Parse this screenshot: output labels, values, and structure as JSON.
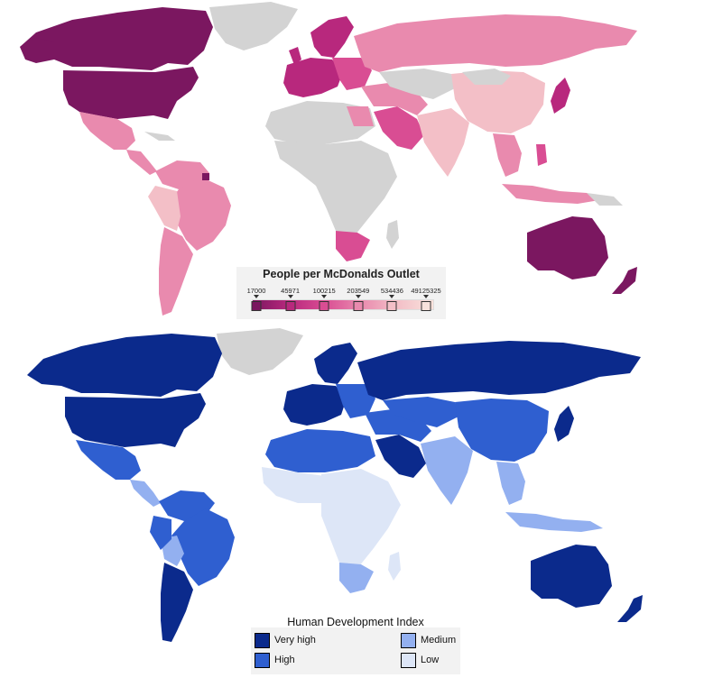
{
  "mcdonalds_legend": {
    "title": "People per McDonalds Outlet",
    "ticks": [
      "17000",
      "45971",
      "100215",
      "203549",
      "534436",
      "49125325"
    ],
    "colors": [
      "#7b1760",
      "#b8287d",
      "#d94d93",
      "#e98aae",
      "#f3bfc7",
      "#f8e2dc"
    ],
    "no_data_color": "#d3d3d3"
  },
  "hdi_legend": {
    "title": "Human Development Index",
    "items": [
      {
        "label": "Very high",
        "color": "#0b2a8c"
      },
      {
        "label": "High",
        "color": "#2f5fd0"
      },
      {
        "label": "Medium",
        "color": "#93b0f0"
      },
      {
        "label": "Low",
        "color": "#dde6f7"
      }
    ],
    "no_data_color": "#d3d3d3"
  }
}
